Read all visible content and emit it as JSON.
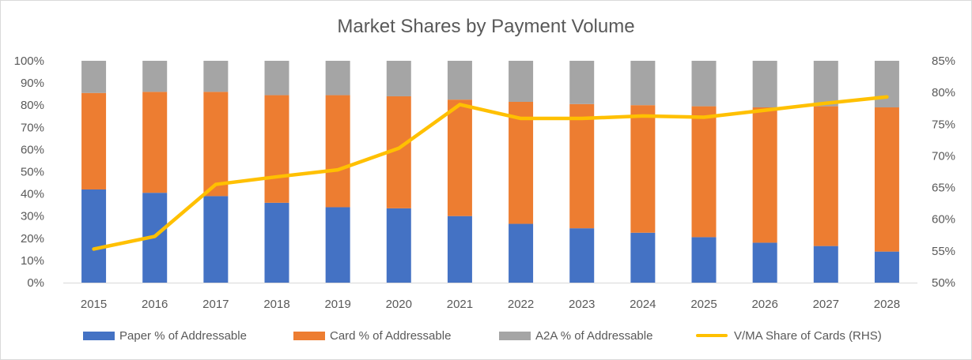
{
  "chart_data": {
    "type": "bar",
    "title": "Market Shares by Payment Volume",
    "categories": [
      "2015",
      "2016",
      "2017",
      "2018",
      "2019",
      "2020",
      "2021",
      "2022",
      "2023",
      "2024",
      "2025",
      "2026",
      "2027",
      "2028"
    ],
    "series": [
      {
        "name": "Paper % of Addressable",
        "type": "bar",
        "axis": "left",
        "color": "#4472C4",
        "values": [
          42,
          40.5,
          39,
          36,
          34,
          33.5,
          30,
          26.5,
          24.5,
          22.5,
          20.5,
          18,
          16.5,
          14
        ]
      },
      {
        "name": "Card % of Addressable",
        "type": "bar",
        "axis": "left",
        "color": "#ED7D31",
        "values": [
          43.5,
          45.5,
          47,
          48.5,
          50.5,
          50.5,
          52.5,
          55,
          56,
          57.5,
          59,
          61,
          63,
          65
        ]
      },
      {
        "name": "A2A % of Addressable",
        "type": "bar",
        "axis": "left",
        "color": "#A5A5A5",
        "values": [
          14.5,
          14,
          14,
          15.5,
          15.5,
          16,
          17.5,
          18.5,
          19.5,
          20,
          20.5,
          21,
          20.5,
          21
        ]
      },
      {
        "name": "V/MA Share of Cards (RHS)",
        "type": "line",
        "axis": "right",
        "color": "#FFC000",
        "values": [
          55.3,
          57.3,
          65.5,
          66.7,
          67.8,
          71.2,
          78.1,
          75.9,
          75.9,
          76.3,
          76.1,
          77.2,
          78.3,
          79.3
        ]
      }
    ],
    "y_left": {
      "ylim": [
        0,
        100
      ],
      "ticks": [
        "0%",
        "10%",
        "20%",
        "30%",
        "40%",
        "50%",
        "60%",
        "70%",
        "80%",
        "90%",
        "100%"
      ]
    },
    "y_right": {
      "ylim": [
        50,
        85
      ],
      "ticks": [
        "50%",
        "55%",
        "60%",
        "65%",
        "70%",
        "75%",
        "80%",
        "85%"
      ]
    },
    "stacked": true,
    "grid": false,
    "legend_position": "bottom"
  }
}
